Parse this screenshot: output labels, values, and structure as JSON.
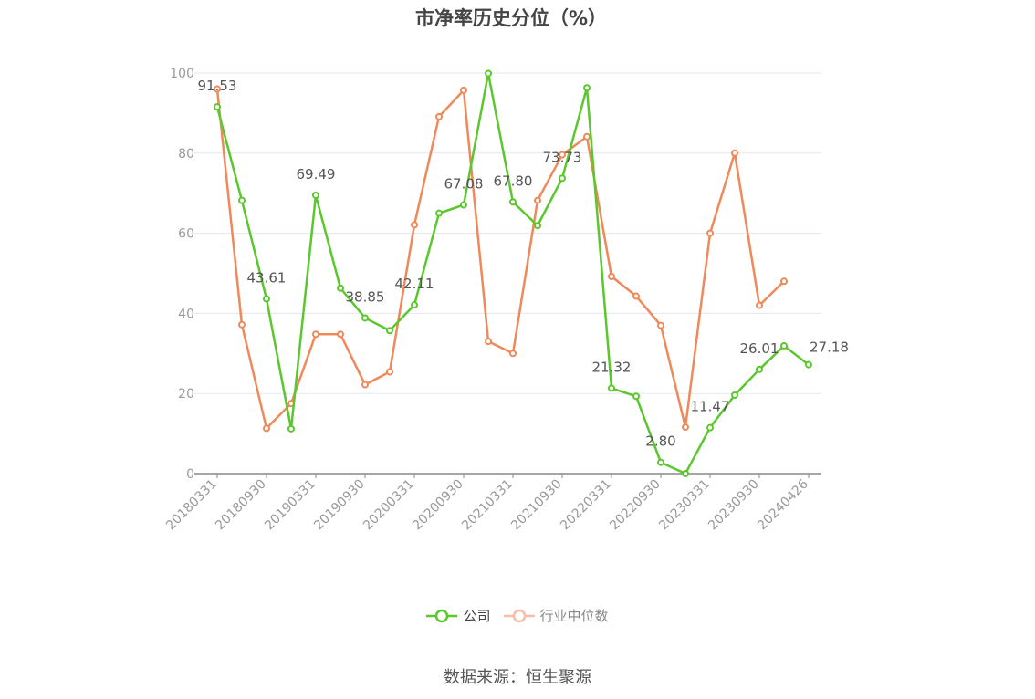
{
  "colors": {
    "company": "#5ac82d",
    "industry": "#f0895a",
    "industry_legend": "#f8bfa6",
    "grid": "#e4e7ee",
    "axis": "#888888",
    "tick_text": "#999999",
    "label_text": "#555555"
  },
  "legend": {
    "company": "公司",
    "industry": "行业中位数"
  },
  "source": "数据来源：恒生聚源",
  "chart_data": {
    "type": "line",
    "title": "市净率历史分位（%）",
    "xlabel": "",
    "ylabel": "",
    "ylim": [
      0,
      100
    ],
    "y_ticks": [
      "0",
      "20",
      "40",
      "60",
      "80",
      "100"
    ],
    "x": [
      "20180331",
      "20180630",
      "20180930",
      "20181231",
      "20190331",
      "20190630",
      "20190930",
      "20191231",
      "20200331",
      "20200630",
      "20200930",
      "20201231",
      "20210331",
      "20210630",
      "20210930",
      "20211231",
      "20220331",
      "20220630",
      "20220930",
      "20221231",
      "20230331",
      "20230630",
      "20230930",
      "20231231",
      "20240426"
    ],
    "x_tick_labels": [
      "20180331",
      "20180930",
      "20190331",
      "20190930",
      "20200331",
      "20200930",
      "20210331",
      "20210930",
      "20220331",
      "20220930",
      "20230331",
      "20230930",
      "20240426"
    ],
    "grid": true,
    "legend_position": "bottom",
    "series": [
      {
        "name": "公司",
        "values": [
          91.53,
          68.2,
          43.61,
          11.2,
          69.49,
          46.3,
          38.85,
          35.7,
          42.11,
          65.0,
          67.08,
          99.9,
          67.8,
          61.9,
          73.73,
          96.3,
          21.32,
          19.3,
          2.8,
          0.0,
          11.47,
          19.6,
          26.01,
          31.9,
          27.18
        ],
        "labels": [
          "91.53",
          "",
          "43.61",
          "",
          "69.49",
          "",
          "38.85",
          "",
          "42.11",
          "",
          "67.08",
          "",
          "67.80",
          "",
          "73.73",
          "",
          "21.32",
          "",
          "2.80",
          "",
          "11.47",
          "",
          "26.01",
          "",
          "27.18"
        ]
      },
      {
        "name": "行业中位数",
        "values": [
          96.0,
          37.2,
          11.3,
          17.5,
          34.8,
          34.8,
          22.2,
          25.4,
          62.1,
          89.1,
          95.7,
          33.0,
          30.0,
          68.2,
          79.6,
          84.1,
          49.2,
          44.3,
          37.0,
          11.6,
          60.0,
          80.0,
          42.0,
          48.0,
          null
        ]
      }
    ]
  }
}
